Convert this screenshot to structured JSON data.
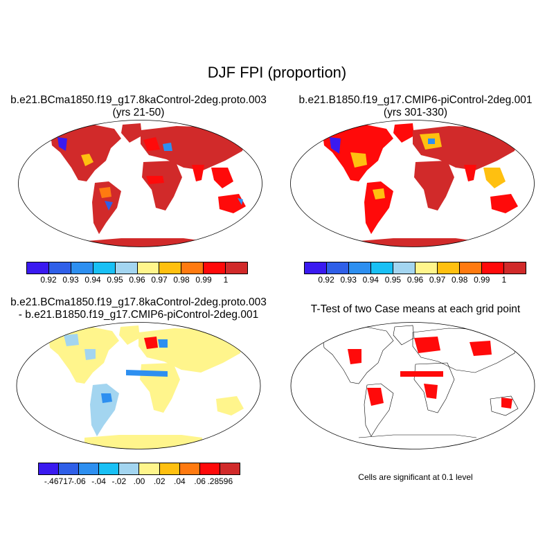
{
  "title": "DJF FPI (proportion)",
  "panels": {
    "top_left": {
      "line1": "b.e21.BCma1850.f19_g17.8kaControl-2deg.proto.003",
      "line2": "(yrs 21-50)"
    },
    "top_right": {
      "line1": "b.e21.B1850.f19_g17.CMIP6-piControl-2deg.001",
      "line2": "(yrs 301-330)"
    },
    "bottom_left": {
      "line1": "b.e21.BCma1850.f19_g17.8kaControl-2deg.proto.003",
      "line2": "- b.e21.B1850.f19_g17.CMIP6-piControl-2deg.001"
    },
    "bottom_right": {
      "line1": "T-Test of two Case means at each grid point"
    }
  },
  "colorbar_main": {
    "colors": [
      "#3a1af0",
      "#2f5fe8",
      "#2d8ff0",
      "#19c0f5",
      "#a3d5f0",
      "#fff58c",
      "#ffc010",
      "#ff7a10",
      "#ff0a0a",
      "#d12a2a"
    ],
    "labels": [
      "0.92",
      "0.93",
      "0.94",
      "0.95",
      "0.96",
      "0.97",
      "0.98",
      "0.99",
      "1"
    ]
  },
  "colorbar_diff": {
    "colors": [
      "#3a1af0",
      "#2f5fe8",
      "#2d8ff0",
      "#19c0f5",
      "#a3d5f0",
      "#fff58c",
      "#ffc010",
      "#ff7a10",
      "#ff0a0a",
      "#d12a2a"
    ],
    "labels": [
      "-.46717",
      "-.06",
      "-.04",
      "-.02",
      ".00",
      ".02",
      ".04",
      ".06",
      ".28596"
    ]
  },
  "ttest_note": "Cells are significant at 0.1 level"
}
